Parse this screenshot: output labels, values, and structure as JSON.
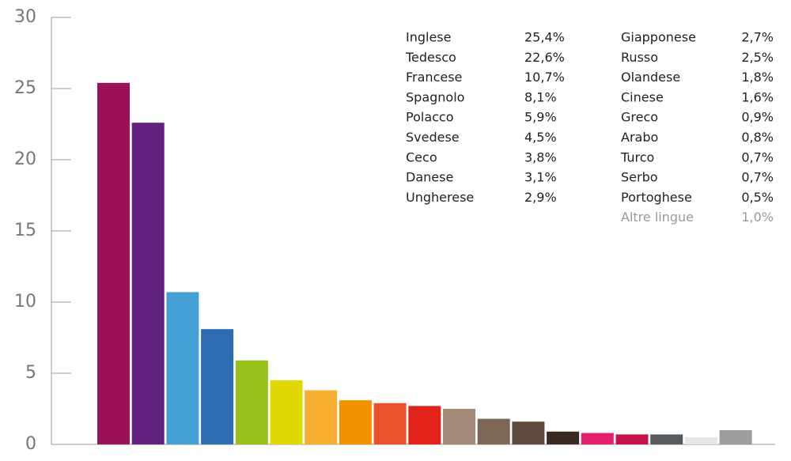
{
  "chart_data": {
    "type": "bar",
    "categories": [
      "Inglese",
      "Tedesco",
      "Francese",
      "Spagnolo",
      "Polacco",
      "Svedese",
      "Ceco",
      "Danese",
      "Ungherese",
      "Giapponese",
      "Russo",
      "Olandese",
      "Cinese",
      "Greco",
      "Arabo",
      "Turco",
      "Serbo",
      "Portoghese",
      "Altre lingue"
    ],
    "values": [
      25.4,
      22.6,
      10.7,
      8.1,
      5.9,
      4.5,
      3.8,
      3.1,
      2.9,
      2.7,
      2.5,
      1.8,
      1.6,
      0.9,
      0.8,
      0.7,
      0.7,
      0.5,
      1.0
    ],
    "value_labels": [
      "25,4%",
      "22,6%",
      "10,7%",
      "8,1%",
      "5,9%",
      "4,5%",
      "3,8%",
      "3,1%",
      "2,9%",
      "2,7%",
      "2,5%",
      "1,8%",
      "1,6%",
      "0,9%",
      "0,8%",
      "0,7%",
      "0,7%",
      "0,5%",
      "1,0%"
    ],
    "colors": [
      "#9b1057",
      "#62207f",
      "#45a0d6",
      "#2f6db3",
      "#97c11c",
      "#e0d800",
      "#f7ae31",
      "#f39200",
      "#e9522a",
      "#e2231a",
      "#a58a7a",
      "#7d6656",
      "#5e4a3e",
      "#3b2a20",
      "#e2206f",
      "#c5124b",
      "#555a5c",
      "#e6e6e6",
      "#9d9d9d"
    ],
    "ylim": [
      0,
      30
    ],
    "yticks": [
      0,
      5,
      10,
      15,
      20,
      25,
      30
    ]
  }
}
